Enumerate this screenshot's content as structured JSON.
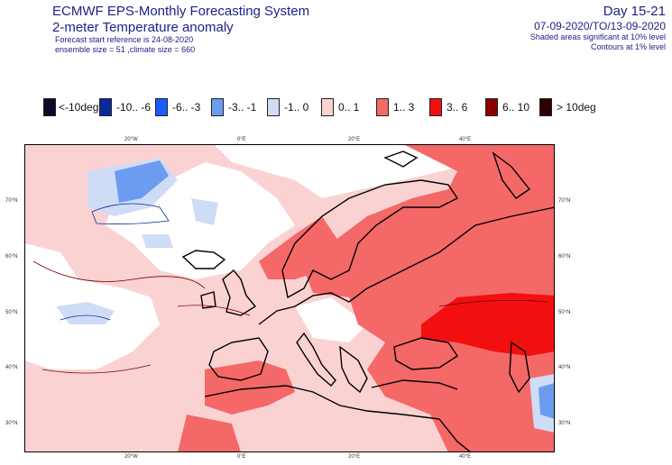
{
  "header": {
    "system": "ECMWF EPS-Monthly Forecasting System",
    "variable": "2-meter Temperature anomaly",
    "reference": "Forecast start reference is 24-08-2020",
    "ensemble": "ensemble size = 51  ,climate size = 660",
    "day_range": "Day 15-21",
    "period": "07-09-2020/TO/13-09-2020",
    "shaded_note": "Shaded areas significant at 10% level",
    "contour_note": "Contours at 1% level"
  },
  "legend": [
    {
      "label": "<-10deg",
      "color": "#0a0a2a",
      "icon": "legend-swatch"
    },
    {
      "label": "-10.. -6",
      "color": "#0a2a9a"
    },
    {
      "label": "-6.. -3",
      "color": "#1a5cff"
    },
    {
      "label": "-3.. -1",
      "color": "#6b9cf0"
    },
    {
      "label": "-1.. 0",
      "color": "#cfdcf6"
    },
    {
      "label": "0.. 1",
      "color": "#fbd2d2"
    },
    {
      "label": "1.. 3",
      "color": "#f46868"
    },
    {
      "label": "3.. 6",
      "color": "#f20f0f"
    },
    {
      "label": "6.. 10",
      "color": "#8a0000"
    },
    {
      "label": "> 10deg",
      "color": "#2e0000"
    }
  ],
  "axes": {
    "lon_top": [
      "20°W",
      "0°E",
      "20°E",
      "40°E"
    ],
    "lon_bottom": [
      "20°W",
      "0°E",
      "20°E",
      "40°E"
    ],
    "lat_right": [
      "70°N",
      "60°N",
      "50°N",
      "40°N",
      "30°N"
    ],
    "lat_left": [
      "70°N",
      "60°N",
      "50°N",
      "40°N",
      "30°N"
    ]
  }
}
